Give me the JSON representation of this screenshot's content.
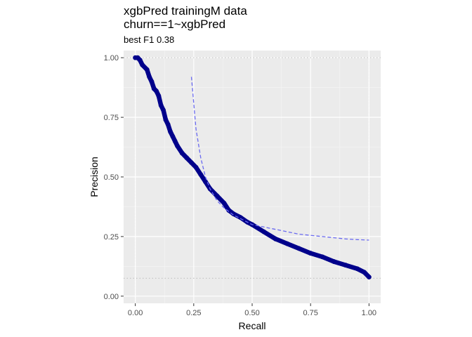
{
  "chart_data": {
    "type": "line",
    "title_lines": [
      "xgbPred trainingM data",
      "churn==1~xgbPred"
    ],
    "subtitle": "best F1 0.38",
    "xlabel": "Recall",
    "ylabel": "Precision",
    "xlim": [
      -0.05,
      1.05
    ],
    "ylim": [
      -0.03,
      1.03
    ],
    "xticks": [
      0.0,
      0.25,
      0.5,
      0.75,
      1.0
    ],
    "xtick_labels": [
      "0.00",
      "0.25",
      "0.50",
      "0.75",
      "1.00"
    ],
    "yticks": [
      0.0,
      0.25,
      0.5,
      0.75,
      1.0
    ],
    "ytick_labels": [
      "0.00",
      "0.25",
      "0.50",
      "0.75",
      "1.00"
    ],
    "grid": true,
    "reference_lines": {
      "horizontal_y": [
        1.0,
        0.075
      ],
      "vertical_x": [
        0.0,
        1.0
      ]
    },
    "series": [
      {
        "kind": "pr_curve",
        "color": "#00008b",
        "x": [
          0.0,
          0.01,
          0.02,
          0.03,
          0.05,
          0.06,
          0.07,
          0.08,
          0.09,
          0.1,
          0.11,
          0.12,
          0.13,
          0.14,
          0.15,
          0.16,
          0.17,
          0.18,
          0.2,
          0.22,
          0.24,
          0.26,
          0.28,
          0.3,
          0.32,
          0.35,
          0.38,
          0.4,
          0.42,
          0.45,
          0.48,
          0.5,
          0.55,
          0.6,
          0.65,
          0.7,
          0.75,
          0.8,
          0.85,
          0.9,
          0.95,
          0.98,
          1.0
        ],
        "y": [
          1.0,
          1.0,
          0.99,
          0.97,
          0.95,
          0.92,
          0.9,
          0.87,
          0.86,
          0.84,
          0.8,
          0.78,
          0.74,
          0.72,
          0.69,
          0.67,
          0.65,
          0.63,
          0.6,
          0.58,
          0.56,
          0.54,
          0.51,
          0.48,
          0.45,
          0.42,
          0.39,
          0.36,
          0.345,
          0.33,
          0.31,
          0.3,
          0.27,
          0.24,
          0.22,
          0.2,
          0.18,
          0.165,
          0.145,
          0.13,
          0.115,
          0.1,
          0.08
        ]
      },
      {
        "kind": "f1_isoline",
        "color": "#6a6af0",
        "dash": true,
        "f1": 0.38,
        "x": [
          0.24,
          0.26,
          0.28,
          0.3,
          0.32,
          0.35,
          0.38,
          0.42,
          0.46,
          0.5,
          0.55,
          0.6,
          0.65,
          0.7,
          0.75,
          0.8,
          0.85,
          0.9,
          0.95,
          1.0
        ],
        "y": [
          0.92,
          0.7,
          0.58,
          0.5,
          0.45,
          0.4,
          0.37,
          0.34,
          0.32,
          0.3,
          0.29,
          0.28,
          0.27,
          0.26,
          0.255,
          0.25,
          0.245,
          0.24,
          0.237,
          0.235
        ]
      }
    ]
  }
}
